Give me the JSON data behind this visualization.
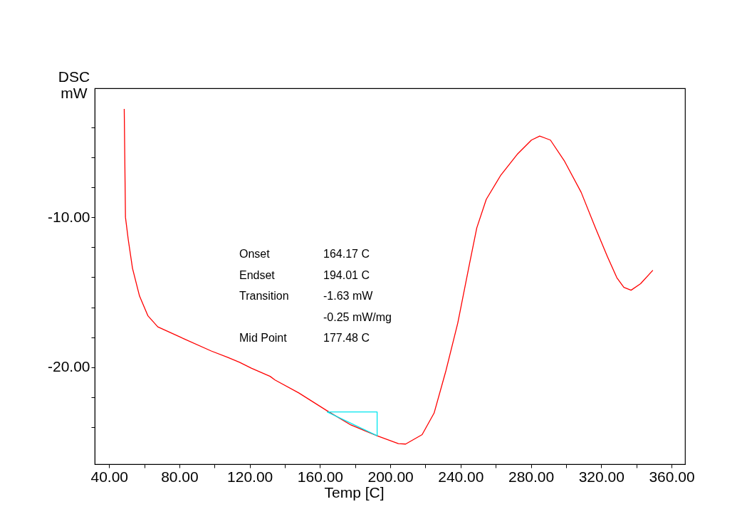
{
  "chart_data": {
    "type": "line",
    "xlabel": "Temp  [C]",
    "ylabel": "DSC\nmW",
    "xlim": [
      31.8,
      367.7
    ],
    "ylim": [
      -26.45,
      -1.41
    ],
    "xticks": [
      {
        "value": 40,
        "label": "40.00"
      },
      {
        "value": 60,
        "label": null
      },
      {
        "value": 80,
        "label": "80.00"
      },
      {
        "value": 100,
        "label": null
      },
      {
        "value": 120,
        "label": "120.00"
      },
      {
        "value": 140,
        "label": null
      },
      {
        "value": 160,
        "label": "160.00"
      },
      {
        "value": 180,
        "label": null
      },
      {
        "value": 200,
        "label": "200.00"
      },
      {
        "value": 220,
        "label": null
      },
      {
        "value": 240,
        "label": "240.00"
      },
      {
        "value": 260,
        "label": null
      },
      {
        "value": 280,
        "label": "280.00"
      },
      {
        "value": 300,
        "label": null
      },
      {
        "value": 320,
        "label": "320.00"
      },
      {
        "value": 340,
        "label": null
      },
      {
        "value": 360,
        "label": "360.00"
      }
    ],
    "yticks": [
      {
        "value": -4,
        "label": null
      },
      {
        "value": -6,
        "label": null
      },
      {
        "value": -8,
        "label": null
      },
      {
        "value": -10,
        "label": "-10.00"
      },
      {
        "value": -12,
        "label": null
      },
      {
        "value": -14,
        "label": null
      },
      {
        "value": -16,
        "label": null
      },
      {
        "value": -18,
        "label": null
      },
      {
        "value": -20,
        "label": "-20.00"
      },
      {
        "value": -22,
        "label": null
      },
      {
        "value": -24,
        "label": null
      }
    ],
    "grid": false,
    "marker": "none",
    "line_style": "solid",
    "annotations": [
      "Onset\t164.17 C",
      "Endset\t194.01 C",
      "Transition\t-1.63 mW",
      "\t-0.25 mW/mg",
      "Mid Point\t177.48 C"
    ],
    "series": [
      {
        "color": "#ff0000",
        "x": [
          48.6,
          48.9,
          49.3,
          50.9,
          53.3,
          57.3,
          62.1,
          67.7,
          82.1,
          98.1,
          107.4,
          114.2,
          120.9,
          131.6,
          134.4,
          147.9,
          164.1,
          177.6,
          192.5,
          204.6,
          208.7,
          218.1,
          224.9,
          231.7,
          238.4,
          245.1,
          249.2,
          254.6,
          262.7,
          272.2,
          280.3,
          285.0,
          291.1,
          299.2,
          308.6,
          316.7,
          323.5,
          328.9,
          332.9,
          337.0,
          342.4,
          349.4
        ],
        "values": [
          -2.79,
          -5.87,
          -10.0,
          -11.5,
          -13.4,
          -15.25,
          -16.57,
          -17.3,
          -18.07,
          -18.91,
          -19.33,
          -19.66,
          -20.05,
          -20.6,
          -20.84,
          -21.7,
          -22.9,
          -23.84,
          -24.56,
          -25.08,
          -25.11,
          -24.48,
          -23.05,
          -20.2,
          -17.04,
          -13.08,
          -10.71,
          -8.81,
          -7.23,
          -5.81,
          -4.86,
          -4.59,
          -4.86,
          -6.28,
          -8.34,
          -10.71,
          -12.61,
          -14.03,
          -14.67,
          -14.86,
          -14.43,
          -13.53
        ]
      },
      {
        "type": "line",
        "color": "#00e5ee",
        "x": [
          164.1,
          192.5,
          192.5
        ],
        "values": [
          -22.97,
          -22.97,
          -24.56
        ]
      },
      {
        "type": "line",
        "color": "#00e5ee",
        "x": [
          164.1,
          192.5
        ],
        "values": [
          -22.97,
          -24.56
        ]
      }
    ]
  }
}
